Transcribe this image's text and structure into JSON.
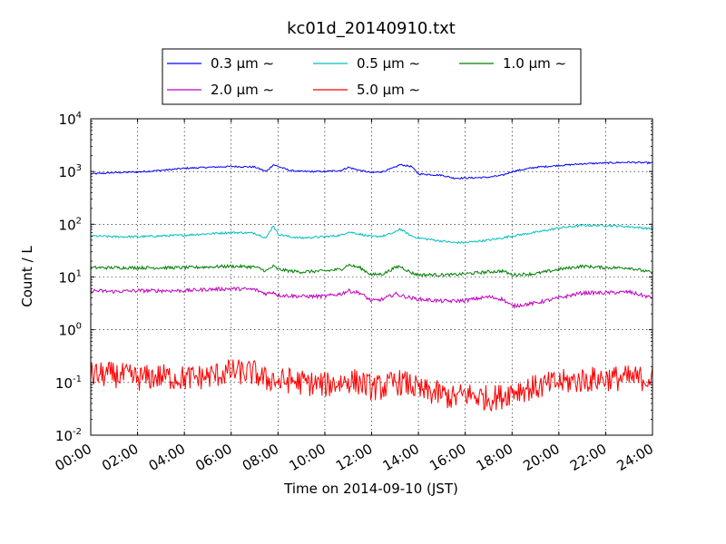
{
  "chart_data": {
    "type": "line",
    "title": "kc01d_20140910.txt",
    "xlabel": "Time on 2014-09-10 (JST)",
    "ylabel": "Count / L",
    "y_scale": "log",
    "grid": "dotted",
    "legend_position": "top-center",
    "legend_columns": 3,
    "xlim": [
      "00:00",
      "24:00"
    ],
    "ylim": [
      0.01,
      10000
    ],
    "x_ticks": [
      "00:00",
      "02:00",
      "04:00",
      "06:00",
      "08:00",
      "10:00",
      "12:00",
      "14:00",
      "16:00",
      "18:00",
      "20:00",
      "22:00",
      "24:00"
    ],
    "y_ticks": [
      {
        "base": "10",
        "exp": "-2"
      },
      {
        "base": "10",
        "exp": "-1"
      },
      {
        "base": "10",
        "exp": "0"
      },
      {
        "base": "10",
        "exp": "1"
      },
      {
        "base": "10",
        "exp": "2"
      },
      {
        "base": "10",
        "exp": "3"
      },
      {
        "base": "10",
        "exp": "4"
      }
    ],
    "x_hours": [
      0,
      1,
      2,
      3,
      4,
      5,
      6,
      7,
      7.5,
      7.8,
      8,
      8.5,
      9,
      10,
      10.7,
      11,
      11.5,
      12,
      12.5,
      13,
      13.2,
      13.7,
      14,
      15,
      15.5,
      16,
      17,
      17.6,
      18,
      19,
      20,
      21,
      22,
      23,
      24
    ],
    "series": [
      {
        "name": "0.3 μm ∼",
        "color": "#0000ff",
        "values": [
          900,
          950,
          980,
          1050,
          1150,
          1200,
          1250,
          1220,
          1000,
          1350,
          1250,
          1050,
          1000,
          1000,
          1050,
          1200,
          1050,
          950,
          1000,
          1200,
          1350,
          1250,
          900,
          850,
          750,
          750,
          780,
          850,
          1000,
          1200,
          1300,
          1400,
          1450,
          1500,
          1450
        ],
        "noise": 0.03
      },
      {
        "name": "0.5 μm ∼",
        "color": "#00bfbf",
        "values": [
          60,
          58,
          58,
          60,
          62,
          66,
          70,
          68,
          55,
          95,
          65,
          58,
          55,
          58,
          62,
          72,
          65,
          58,
          60,
          70,
          82,
          60,
          55,
          48,
          45,
          45,
          50,
          55,
          60,
          70,
          85,
          95,
          95,
          90,
          82
        ],
        "noise": 0.04
      },
      {
        "name": "1.0 μm ∼",
        "color": "#008000",
        "values": [
          15,
          15,
          15,
          15,
          15,
          15.5,
          16,
          15.5,
          13,
          16,
          14,
          13,
          12.5,
          13,
          14,
          17,
          15,
          11,
          11.5,
          15,
          16,
          12,
          11,
          11,
          11,
          11.5,
          12.5,
          13,
          11,
          11.5,
          14,
          16,
          15,
          15,
          12
        ],
        "noise": 0.06
      },
      {
        "name": "2.0 μm ∼",
        "color": "#bf00bf",
        "values": [
          5.5,
          5.3,
          5.5,
          5.5,
          5.5,
          5.8,
          6,
          5.8,
          4.8,
          5.2,
          4.5,
          4.4,
          4.3,
          4.3,
          4.8,
          5.5,
          5,
          3.5,
          3.8,
          4.8,
          4.5,
          4,
          3.8,
          3.5,
          3.5,
          3.6,
          4.2,
          3.8,
          2.8,
          3.2,
          4,
          5,
          5,
          5.2,
          4
        ],
        "noise": 0.07
      },
      {
        "name": "2.0 μm ∼",
        "hidden_note": "",
        "color": "#bf00bf",
        "values": [],
        "noise": 0
      },
      {
        "name": "5.0 μm ∼",
        "color": "#ff0000",
        "values": [
          0.14,
          0.14,
          0.12,
          0.13,
          0.12,
          0.13,
          0.16,
          0.15,
          0.11,
          0.12,
          0.1,
          0.11,
          0.1,
          0.09,
          0.1,
          0.11,
          0.1,
          0.08,
          0.08,
          0.1,
          0.1,
          0.09,
          0.07,
          0.06,
          0.05,
          0.06,
          0.05,
          0.055,
          0.07,
          0.08,
          0.1,
          0.11,
          0.12,
          0.12,
          0.12
        ],
        "noise": 0.5
      }
    ]
  }
}
